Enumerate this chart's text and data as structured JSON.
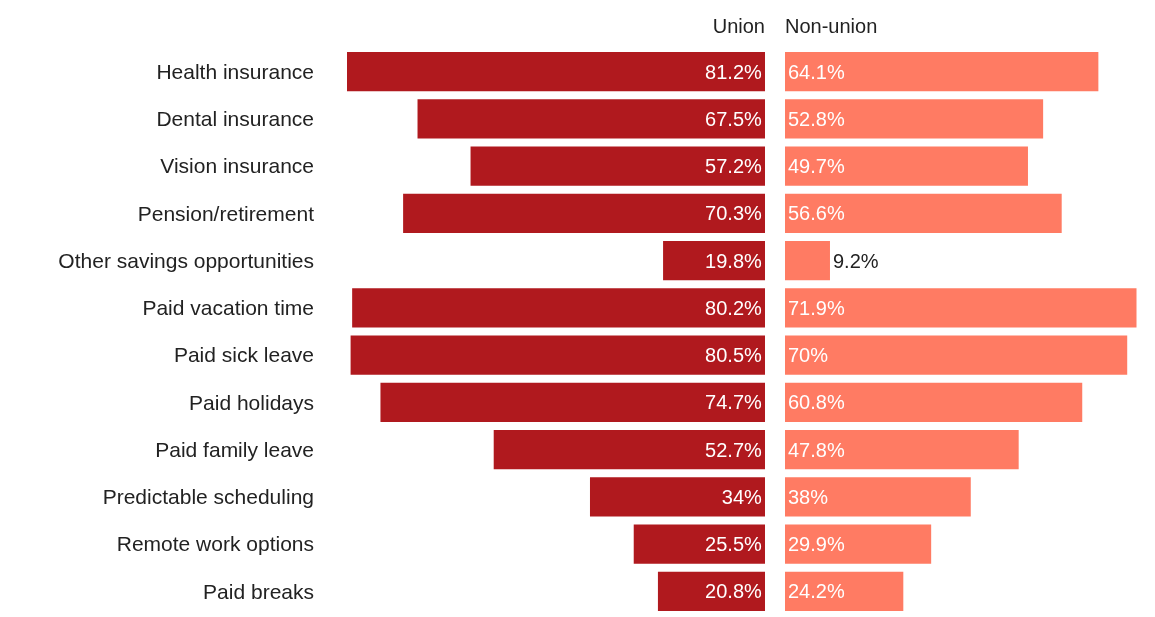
{
  "chart_data": [
    {
      "type": "bar",
      "orientation": "horizontal",
      "title": "Union",
      "categories": [
        "Health insurance",
        "Dental insurance",
        "Vision insurance",
        "Pension/retirement",
        "Other savings opportunities",
        "Paid vacation time",
        "Paid sick leave",
        "Paid holidays",
        "Paid family leave",
        "Predictable scheduling",
        "Remote work options",
        "Paid breaks"
      ],
      "values": [
        81.2,
        67.5,
        57.2,
        70.3,
        19.8,
        80.2,
        80.5,
        74.7,
        52.7,
        34,
        25.5,
        20.8
      ],
      "value_labels": [
        "81.2%",
        "67.5%",
        "57.2%",
        "70.3%",
        "19.8%",
        "80.2%",
        "80.5%",
        "74.7%",
        "52.7%",
        "34%",
        "25.5%",
        "20.8%"
      ],
      "color": "#b0191e",
      "tick_labels": "y"
    },
    {
      "type": "bar",
      "orientation": "horizontal",
      "title": "Non-union",
      "categories": [
        null,
        null,
        null,
        null,
        null,
        null,
        null,
        null,
        null,
        null,
        null,
        null
      ],
      "values": [
        64.1,
        52.8,
        49.7,
        56.6,
        9.2,
        71.9,
        70,
        60.8,
        47.8,
        38,
        29.9,
        24.2
      ],
      "value_labels": [
        "64.1%",
        "52.8%",
        "49.7%",
        "56.6%",
        "9.2%",
        "71.9%",
        "70%",
        "60.8%",
        "47.8%",
        "38%",
        "29.9%",
        "24.2%"
      ],
      "color": "#ff7b63",
      "tick_labels": false
    }
  ]
}
